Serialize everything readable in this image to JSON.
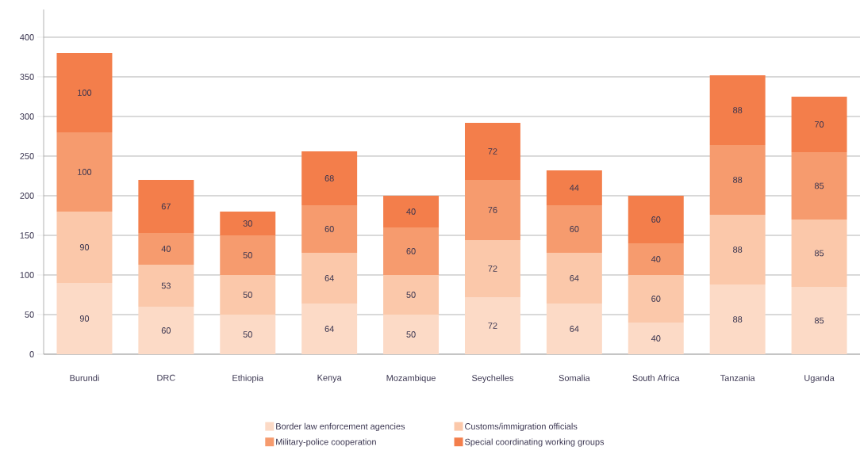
{
  "chart_data": {
    "type": "bar",
    "stacked": true,
    "categories": [
      "Burundi",
      "DRC",
      "Ethiopia",
      "Kenya",
      "Mozambique",
      "Seychelles",
      "Somalia",
      "South Africa",
      "Tanzania",
      "Uganda"
    ],
    "series": [
      {
        "name": "Border law enforcement agencies",
        "color": "#fcdac6",
        "values": [
          90,
          60,
          50,
          64,
          50,
          72,
          64,
          40,
          88,
          85
        ]
      },
      {
        "name": "Customs/immigration officials",
        "color": "#fbc8aa",
        "values": [
          90,
          53,
          50,
          64,
          50,
          72,
          64,
          60,
          88,
          85
        ]
      },
      {
        "name": "Military-police cooperation",
        "color": "#f69b6e",
        "values": [
          100,
          40,
          50,
          60,
          60,
          76,
          60,
          40,
          88,
          85
        ]
      },
      {
        "name": "Special coordinating working groups",
        "color": "#f37e4b",
        "values": [
          100,
          67,
          30,
          68,
          40,
          72,
          44,
          60,
          88,
          70
        ]
      }
    ],
    "ylim": [
      0,
      435
    ],
    "yticks": [
      0,
      50,
      100,
      150,
      200,
      250,
      300,
      350,
      400
    ],
    "grid": "y",
    "legend": "bottom",
    "data_labels": true
  }
}
